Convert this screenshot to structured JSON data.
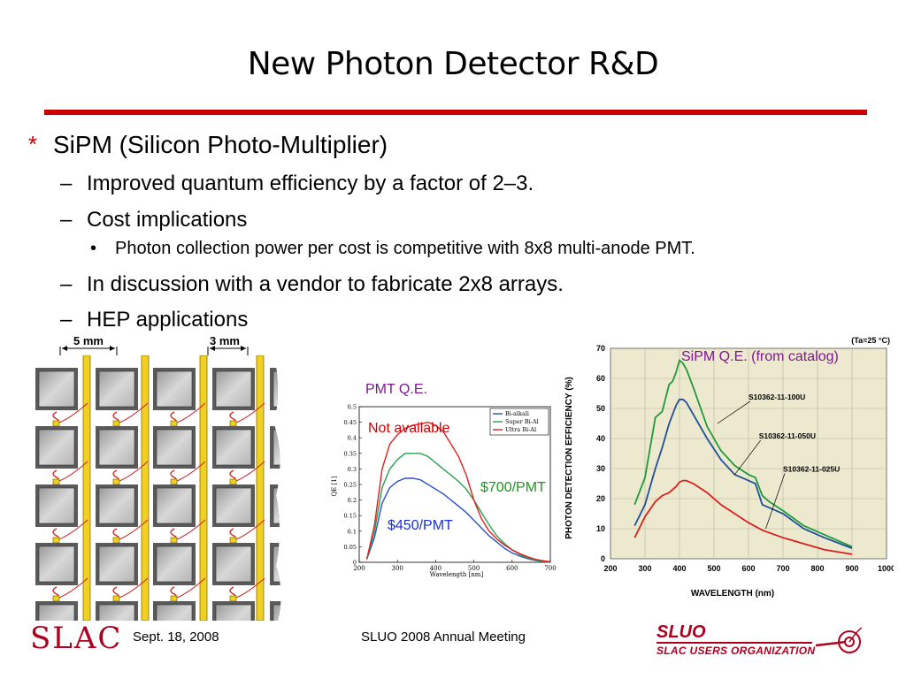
{
  "slide": {
    "title": "New Photon Detector R&D",
    "bullet_marker": "*",
    "main_bullet": "SiPM (Silicon Photo-Multiplier)",
    "sub_bullets": [
      "Improved quantum efficiency by a factor of 2–3.",
      "Cost implications",
      "In discussion with a vendor to fabricate 2x8 arrays.",
      "HEP applications"
    ],
    "sub_sub_bullet": "Photon collection power per cost is competitive with 8x8 multi-anode PMT.",
    "dash": "–",
    "dot": "•"
  },
  "array_diagram": {
    "dim_left": "5 mm",
    "dim_right": "3 mm"
  },
  "pmt_chart": {
    "title": "PMT Q.E.",
    "note_not_available": "Not available",
    "price_700": "$700/PMT",
    "price_450": "$450/PMT",
    "xlabel": "Wavelength [nm]",
    "ylabel": "QE [1]",
    "x_ticks": [
      "200",
      "300",
      "400",
      "500",
      "600",
      "700"
    ],
    "y_ticks": [
      "0",
      "0.05",
      "0.1",
      "0.15",
      "0.2",
      "0.25",
      "0.3",
      "0.35",
      "0.4",
      "0.45",
      "0.5"
    ],
    "legend": [
      "Bi-alkali",
      "Super Bi-Al",
      "Ultra Bi-Al"
    ],
    "colors": [
      "#2a4fd0",
      "#2aa050",
      "#e02020"
    ]
  },
  "sipm_chart": {
    "title": "SiPM Q.E. (from catalog)",
    "condition": "(Ta=25 °C)",
    "xlabel": "WAVELENGTH (nm)",
    "ylabel": "PHOTON DETECTION EFFICIENCY (%)",
    "x_ticks": [
      "200",
      "300",
      "400",
      "500",
      "600",
      "700",
      "800",
      "900",
      "1000"
    ],
    "y_ticks": [
      "0",
      "10",
      "20",
      "30",
      "40",
      "50",
      "60",
      "70"
    ],
    "series_labels": [
      "S10362-11-100U",
      "S10362-11-050U",
      "S10362-11-025U"
    ],
    "colors": [
      "#1f9a3a",
      "#1f4f9a",
      "#d82020"
    ]
  },
  "chart_data": [
    {
      "type": "line",
      "title": "",
      "xlabel": "Wavelength [nm]",
      "ylabel": "QE [1]",
      "xlim": [
        200,
        700
      ],
      "ylim": [
        0,
        0.5
      ],
      "legend_position": "top-right",
      "series": [
        {
          "name": "Bi-alkali",
          "x": [
            220,
            240,
            260,
            280,
            300,
            320,
            340,
            360,
            380,
            400,
            420,
            440,
            460,
            480,
            500,
            520,
            540,
            560,
            580,
            600,
            620,
            640,
            660,
            680,
            700
          ],
          "y": [
            0.01,
            0.08,
            0.19,
            0.24,
            0.26,
            0.27,
            0.27,
            0.265,
            0.25,
            0.235,
            0.22,
            0.2,
            0.18,
            0.16,
            0.135,
            0.11,
            0.085,
            0.065,
            0.045,
            0.03,
            0.02,
            0.012,
            0.006,
            0.003,
            0.001
          ]
        },
        {
          "name": "Super Bi-Al",
          "x": [
            220,
            240,
            260,
            280,
            300,
            320,
            340,
            360,
            380,
            400,
            420,
            440,
            460,
            480,
            500,
            520,
            540,
            560,
            580,
            600,
            620,
            640,
            660,
            680,
            700
          ],
          "y": [
            0.01,
            0.1,
            0.24,
            0.3,
            0.33,
            0.35,
            0.35,
            0.35,
            0.34,
            0.32,
            0.3,
            0.28,
            0.26,
            0.235,
            0.2,
            0.16,
            0.12,
            0.085,
            0.06,
            0.04,
            0.025,
            0.014,
            0.007,
            0.003,
            0.001
          ]
        },
        {
          "name": "Ultra Bi-Al",
          "x": [
            220,
            240,
            260,
            280,
            300,
            320,
            340,
            360,
            380,
            400,
            420,
            440,
            460,
            480,
            500,
            520,
            540,
            560,
            580,
            600,
            620,
            640,
            660,
            680,
            700
          ],
          "y": [
            0.01,
            0.12,
            0.3,
            0.38,
            0.41,
            0.43,
            0.44,
            0.445,
            0.45,
            0.44,
            0.42,
            0.38,
            0.34,
            0.28,
            0.2,
            0.14,
            0.1,
            0.075,
            0.055,
            0.04,
            0.028,
            0.018,
            0.01,
            0.005,
            0.002
          ]
        }
      ]
    },
    {
      "type": "line",
      "title": "",
      "xlabel": "WAVELENGTH (nm)",
      "ylabel": "PHOTON DETECTION EFFICIENCY (%)",
      "xlim": [
        200,
        1000
      ],
      "ylim": [
        0,
        70
      ],
      "series": [
        {
          "name": "S10362-11-100U",
          "x": [
            270,
            300,
            330,
            350,
            370,
            380,
            390,
            400,
            410,
            420,
            440,
            480,
            520,
            560,
            600,
            620,
            640,
            660,
            700,
            760,
            820,
            900
          ],
          "y": [
            18,
            27,
            47,
            49,
            58,
            59,
            62,
            66,
            65,
            63,
            57,
            44,
            36,
            31,
            28,
            27,
            21,
            19,
            16,
            11,
            8,
            4
          ]
        },
        {
          "name": "S10362-11-050U",
          "x": [
            270,
            300,
            330,
            350,
            370,
            390,
            400,
            410,
            420,
            440,
            480,
            520,
            560,
            600,
            620,
            640,
            660,
            700,
            760,
            820,
            900
          ],
          "y": [
            11,
            18,
            30,
            37,
            45,
            51,
            53,
            53,
            52,
            48,
            40,
            33,
            28,
            26,
            25,
            18,
            17,
            15,
            10,
            7,
            3.5
          ]
        },
        {
          "name": "S10362-11-025U",
          "x": [
            270,
            300,
            330,
            350,
            370,
            390,
            400,
            410,
            420,
            440,
            480,
            520,
            560,
            600,
            640,
            700,
            760,
            820,
            900
          ],
          "y": [
            7,
            14,
            19,
            21,
            22,
            24,
            25.5,
            26,
            26,
            25,
            22,
            18,
            15,
            12,
            9.5,
            7,
            5,
            3,
            1.5
          ]
        }
      ]
    }
  ],
  "footer": {
    "date": "Sept. 18, 2008",
    "meeting": "SLUO 2008 Annual Meeting",
    "slac_logo": "SLAC",
    "sluo_logo": "SLUO",
    "sluo_sub": "SLAC USERS ORGANIZATION"
  }
}
